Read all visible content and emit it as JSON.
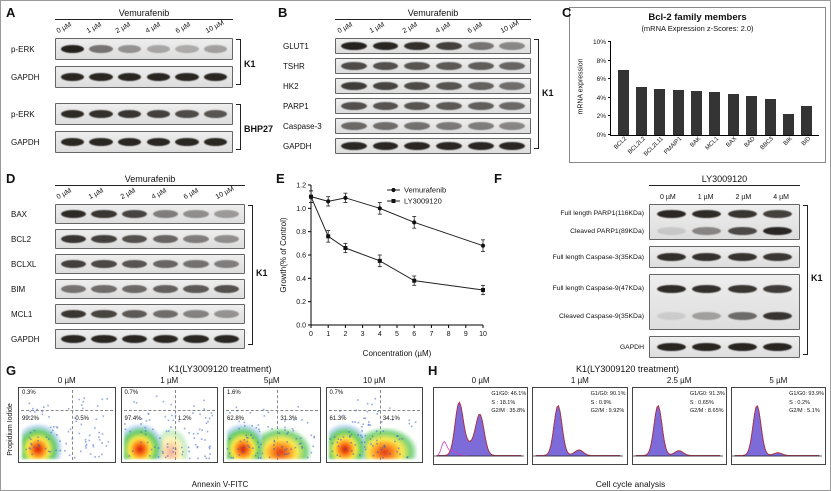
{
  "panels": {
    "A": {
      "tag": "A",
      "title": "Vemurafenib",
      "doses": [
        "0 µM",
        "1 µM",
        "2 µM",
        "4 µM",
        "6 µM",
        "10 µM"
      ],
      "groups": [
        {
          "bracket": "K1",
          "rows": [
            {
              "label": "p-ERK",
              "bands": [
                0.95,
                0.55,
                0.4,
                0.3,
                0.28,
                0.33
              ]
            },
            {
              "label": "GAPDH",
              "bands": [
                0.92,
                0.92,
                0.92,
                0.92,
                0.92,
                0.92
              ]
            }
          ]
        },
        {
          "bracket": "BHP27",
          "rows": [
            {
              "label": "p-ERK",
              "bands": [
                0.9,
                0.88,
                0.85,
                0.8,
                0.75,
                0.7
              ]
            },
            {
              "label": "GAPDH",
              "bands": [
                0.92,
                0.92,
                0.92,
                0.92,
                0.92,
                0.92
              ]
            }
          ]
        }
      ]
    },
    "B": {
      "tag": "B",
      "title": "Vemurafenib",
      "doses": [
        "0 µM",
        "1 µM",
        "2 µM",
        "4 µM",
        "6 µM",
        "10 µM"
      ],
      "groups": [
        {
          "bracket": "K1",
          "rows": [
            {
              "label": "GLUT1",
              "bands": [
                0.95,
                0.92,
                0.88,
                0.8,
                0.55,
                0.45
              ]
            },
            {
              "label": "TSHR",
              "bands": [
                0.75,
                0.72,
                0.7,
                0.68,
                0.66,
                0.62
              ]
            },
            {
              "label": "HK2",
              "bands": [
                0.82,
                0.78,
                0.75,
                0.7,
                0.64,
                0.58
              ]
            },
            {
              "label": "PARP1",
              "bands": [
                0.72,
                0.7,
                0.7,
                0.68,
                0.65,
                0.6
              ]
            },
            {
              "label": "Caspase-3",
              "bands": [
                0.6,
                0.58,
                0.56,
                0.52,
                0.5,
                0.46
              ]
            },
            {
              "label": "GAPDH",
              "bands": [
                0.92,
                0.92,
                0.92,
                0.92,
                0.92,
                0.92
              ]
            }
          ]
        }
      ]
    },
    "C": {
      "tag": "C"
    },
    "D": {
      "tag": "D",
      "title": "Vemurafenib",
      "doses": [
        "0 µM",
        "1 µM",
        "2 µM",
        "4 µM",
        "6 µM",
        "10 µM"
      ],
      "groups": [
        {
          "bracket": "K1",
          "rows": [
            {
              "label": "BAX",
              "bands": [
                0.9,
                0.85,
                0.78,
                0.5,
                0.42,
                0.36
              ]
            },
            {
              "label": "BCL2",
              "bands": [
                0.85,
                0.8,
                0.72,
                0.62,
                0.5,
                0.42
              ]
            },
            {
              "label": "BCLXL",
              "bands": [
                0.8,
                0.76,
                0.7,
                0.62,
                0.56,
                0.5
              ]
            },
            {
              "label": "BIM",
              "bands": [
                0.55,
                0.58,
                0.6,
                0.64,
                0.68,
                0.72
              ]
            },
            {
              "label": "MCL1",
              "bands": [
                0.85,
                0.78,
                0.68,
                0.58,
                0.48,
                0.4
              ]
            },
            {
              "label": "GAPDH",
              "bands": [
                0.92,
                0.92,
                0.92,
                0.92,
                0.92,
                0.92
              ]
            }
          ]
        }
      ]
    },
    "E": {
      "tag": "E"
    },
    "F": {
      "tag": "F",
      "title": "LY3009120",
      "doses": [
        "0 µM",
        "1 µM",
        "2 µM",
        "4 µM"
      ],
      "bracket": "K1",
      "boxes": [
        {
          "rows": [
            {
              "label": "Full length PARP1(116KDa)",
              "bands": [
                0.92,
                0.9,
                0.86,
                0.8
              ]
            },
            {
              "label": "Cleaved PARP1(89KDa)",
              "bands": [
                0.12,
                0.45,
                0.75,
                0.92
              ]
            }
          ]
        },
        {
          "rows": [
            {
              "label": "Full length Caspase-3(35KDa)",
              "bands": [
                0.88,
                0.87,
                0.86,
                0.84
              ]
            }
          ]
        },
        {
          "tall": true,
          "rows": [
            {
              "label": "Full length Caspase-9(47KDa)",
              "bands": [
                0.9,
                0.88,
                0.85,
                0.82
              ]
            },
            {
              "label": "Cleaved Caspase-9(35KDa)",
              "bands": [
                0.1,
                0.32,
                0.58,
                0.85
              ]
            }
          ]
        },
        {
          "rows": [
            {
              "label": "GAPDH",
              "bands": [
                0.93,
                0.93,
                0.93,
                0.93
              ]
            }
          ]
        }
      ]
    },
    "G": {
      "tag": "G",
      "title": "K1(LY3009120 treatment)",
      "xlabel": "Annexin V-FITC",
      "ylabel": "Propidium Iodide",
      "plots": [
        {
          "dose": "0 µM",
          "upper": "0.3%",
          "lower_left": "99.2%",
          "lower_right": "0.5%",
          "shift": 0
        },
        {
          "dose": "1 µM",
          "upper": "0.7%",
          "lower_left": "97.4%",
          "lower_right": "1.2%",
          "shift": 0.15
        },
        {
          "dose": "5µM",
          "upper": "1.6%",
          "lower_left": "62.8%",
          "lower_right": "31.3%",
          "shift": 0.75
        },
        {
          "dose": "10 µM",
          "upper": "0.7%",
          "lower_left": "61.3%",
          "lower_right": "34.1%",
          "shift": 0.85
        }
      ]
    },
    "H": {
      "tag": "H",
      "title": "K1(LY3009120 treatment)",
      "xlabel": "Cell cycle analysis",
      "plots": [
        {
          "dose": "0 µM",
          "lines": [
            "G1/G0: 46.1%",
            "S : 18.1%",
            "G2/M : 35.8%"
          ],
          "g1": 46.1,
          "s": 18.1,
          "g2": 35.8,
          "debris": true
        },
        {
          "dose": "1 µM",
          "lines": [
            "G1/G0: 90.1%",
            "S : 0.9%",
            "G2/M : 9.92%"
          ],
          "g1": 90.1,
          "s": 0.9,
          "g2": 9.92,
          "debris": false
        },
        {
          "dose": "2.5 µM",
          "lines": [
            "G1/G0: 91.3%",
            "S : 0.65%",
            "G2/M : 8.65%"
          ],
          "g1": 91.3,
          "s": 0.65,
          "g2": 8.65,
          "debris": false
        },
        {
          "dose": "5 µM",
          "lines": [
            "G1/G0: 93.9%",
            "S : 0.2%",
            "G2/M : 5.1%"
          ],
          "g1": 93.9,
          "s": 0.2,
          "g2": 5.1,
          "debris": false
        }
      ]
    }
  },
  "chart_data": [
    {
      "type": "bar",
      "title": "Bcl-2 family members",
      "subtitle": "(mRNA Expression z-Scores: 2.0)",
      "categories": [
        "BCL2",
        "BCL2L2",
        "BCL2L11",
        "PMAIP1",
        "BAK",
        "MCL1",
        "BAX",
        "BAD",
        "BBC3",
        "BIK",
        "BID"
      ],
      "values": [
        7.0,
        5.2,
        5.0,
        4.8,
        4.7,
        4.6,
        4.4,
        4.2,
        3.9,
        2.3,
        3.1
      ],
      "xlabel": "",
      "ylabel": "mRNA expression",
      "ylim": [
        0,
        10
      ],
      "ytick_suffix": "%",
      "bar_color": "#343434"
    },
    {
      "type": "line",
      "title": "",
      "x": [
        0,
        1,
        2,
        4,
        6,
        10
      ],
      "series": [
        {
          "name": "Vemurafenib",
          "marker": "circle",
          "values": [
            1.1,
            1.06,
            1.09,
            1.0,
            0.88,
            0.68
          ],
          "err": [
            0.05,
            0.04,
            0.04,
            0.05,
            0.05,
            0.05
          ]
        },
        {
          "name": "LY3009120",
          "marker": "square",
          "values": [
            1.1,
            0.76,
            0.66,
            0.55,
            0.38,
            0.3
          ],
          "err": [
            0.05,
            0.05,
            0.04,
            0.05,
            0.04,
            0.04
          ]
        }
      ],
      "xlabel": "Concentration (µM)",
      "ylabel": "Growth(% of Control)",
      "xlim": [
        0,
        10
      ],
      "ylim": [
        0,
        1.2
      ],
      "yticks": [
        0,
        0.2,
        0.4,
        0.6,
        0.8,
        1.0,
        1.2
      ],
      "legend_position": "top-right"
    }
  ]
}
